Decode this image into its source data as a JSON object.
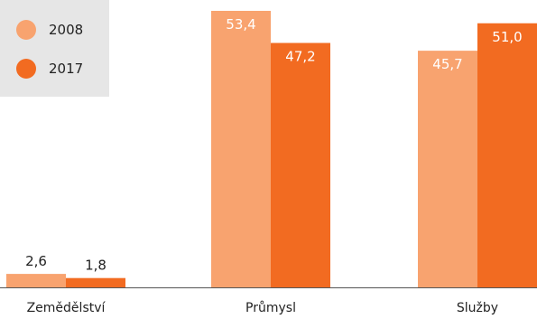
{
  "chart_data": {
    "type": "bar",
    "categories": [
      "Zemědělství",
      "Průmysl",
      "Služby"
    ],
    "series": [
      {
        "name": "2008",
        "values": [
          2.6,
          53.4,
          45.7
        ],
        "labels": [
          "2,6",
          "53,4",
          "45,7"
        ],
        "color": "#f8a36f"
      },
      {
        "name": "2017",
        "values": [
          1.8,
          47.2,
          51.0
        ],
        "labels": [
          "1,8",
          "47,2",
          "51,0"
        ],
        "color": "#f26b21"
      }
    ],
    "ylim": [
      0,
      53.4
    ],
    "legend_position": "top-left",
    "grid": false
  }
}
